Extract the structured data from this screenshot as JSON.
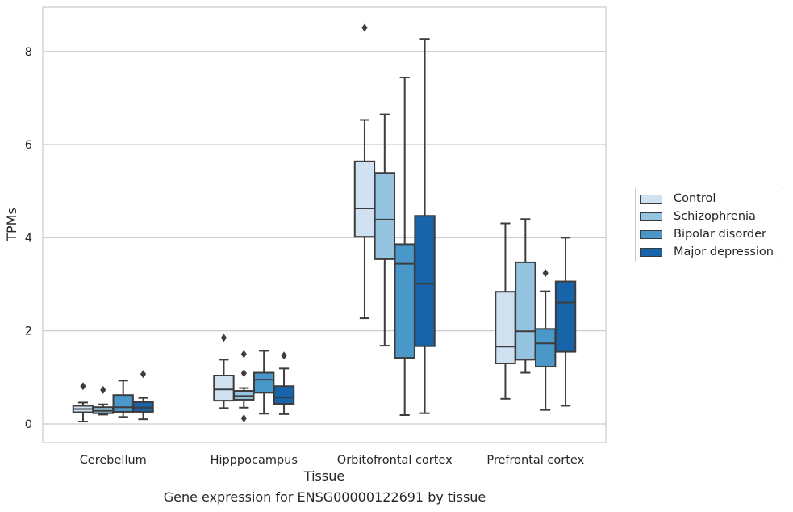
{
  "caption": "Gene expression for ENSG00000122691 by tissue",
  "chart_data": {
    "type": "box",
    "xlabel": "Tissue",
    "ylabel": "TPMs",
    "ylim": [
      -0.4,
      8.95
    ],
    "yticks": [
      0,
      2,
      4,
      6,
      8
    ],
    "grid": "horizontal",
    "legend_position": "right",
    "categories": [
      "Cerebellum",
      "Hipppocampus",
      "Orbitofrontal cortex",
      "Prefrontal cortex"
    ],
    "series": [
      {
        "name": "Control",
        "color": "#d0e1f2",
        "boxes": [
          {
            "whisker_low": 0.05,
            "q1": 0.25,
            "median": 0.32,
            "q3": 0.39,
            "whisker_high": 0.46,
            "outliers": [
              0.81
            ]
          },
          {
            "whisker_low": 0.34,
            "q1": 0.5,
            "median": 0.74,
            "q3": 1.04,
            "whisker_high": 1.38,
            "outliers": [
              1.85
            ]
          },
          {
            "whisker_low": 2.27,
            "q1": 4.02,
            "median": 4.63,
            "q3": 5.64,
            "whisker_high": 6.53,
            "outliers": [
              8.51
            ]
          },
          {
            "whisker_low": 0.54,
            "q1": 1.3,
            "median": 1.66,
            "q3": 2.84,
            "whisker_high": 4.31,
            "outliers": []
          }
        ]
      },
      {
        "name": "Schizophrenia",
        "color": "#94c4df",
        "boxes": [
          {
            "whisker_low": 0.2,
            "q1": 0.23,
            "median": 0.28,
            "q3": 0.36,
            "whisker_high": 0.42,
            "outliers": [
              0.73
            ]
          },
          {
            "whisker_low": 0.35,
            "q1": 0.52,
            "median": 0.6,
            "q3": 0.71,
            "whisker_high": 0.77,
            "outliers": [
              1.5,
              1.09,
              0.12
            ]
          },
          {
            "whisker_low": 1.68,
            "q1": 3.54,
            "median": 4.39,
            "q3": 5.39,
            "whisker_high": 6.65,
            "outliers": []
          },
          {
            "whisker_low": 1.1,
            "q1": 1.38,
            "median": 1.99,
            "q3": 3.47,
            "whisker_high": 4.4,
            "outliers": []
          }
        ]
      },
      {
        "name": "Bipolar disorder",
        "color": "#4a98c9",
        "boxes": [
          {
            "whisker_low": 0.15,
            "q1": 0.26,
            "median": 0.36,
            "q3": 0.62,
            "whisker_high": 0.93,
            "outliers": []
          },
          {
            "whisker_low": 0.22,
            "q1": 0.67,
            "median": 0.95,
            "q3": 1.1,
            "whisker_high": 1.57,
            "outliers": []
          },
          {
            "whisker_low": 0.19,
            "q1": 1.42,
            "median": 3.44,
            "q3": 3.86,
            "whisker_high": 7.44,
            "outliers": []
          },
          {
            "whisker_low": 0.3,
            "q1": 1.23,
            "median": 1.73,
            "q3": 2.04,
            "whisker_high": 2.85,
            "outliers": [
              3.24
            ]
          }
        ]
      },
      {
        "name": "Major depression",
        "color": "#1764ab",
        "boxes": [
          {
            "whisker_low": 0.1,
            "q1": 0.26,
            "median": 0.35,
            "q3": 0.47,
            "whisker_high": 0.56,
            "outliers": [
              1.07
            ]
          },
          {
            "whisker_low": 0.21,
            "q1": 0.43,
            "median": 0.57,
            "q3": 0.81,
            "whisker_high": 1.19,
            "outliers": [
              1.47
            ]
          },
          {
            "whisker_low": 0.23,
            "q1": 1.67,
            "median": 3.01,
            "q3": 4.47,
            "whisker_high": 8.27,
            "outliers": []
          },
          {
            "whisker_low": 0.39,
            "q1": 1.55,
            "median": 2.61,
            "q3": 3.06,
            "whisker_high": 4.0,
            "outliers": []
          }
        ]
      }
    ]
  }
}
